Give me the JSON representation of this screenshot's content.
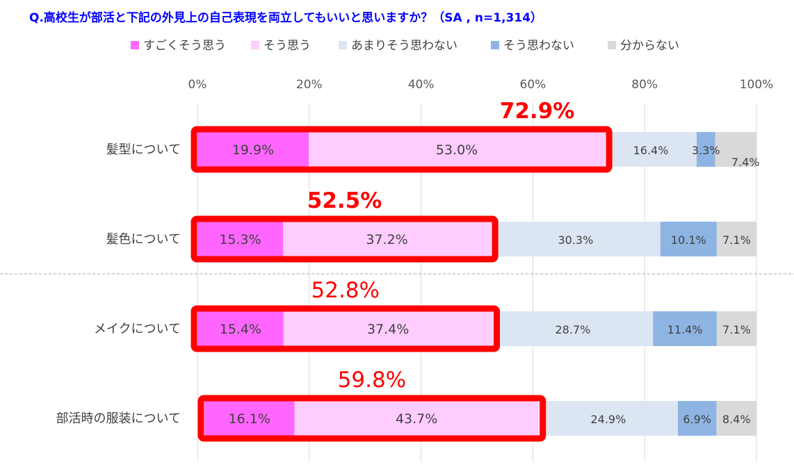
{
  "chart_data": {
    "type": "bar",
    "orientation": "horizontal",
    "stacked": true,
    "title": "Q.高校生が部活と下記の外見上の自己表現を両立してもいいと思いますか？（SA , n=1,314）",
    "xlim": [
      0,
      100
    ],
    "x_ticks": [
      "0%",
      "20%",
      "40%",
      "60%",
      "80%",
      "100%"
    ],
    "grid": "vertical",
    "legend_position": "top",
    "categories": [
      "髪型について",
      "髪色について",
      "メイクについて",
      "部活時の服装について"
    ],
    "series": [
      {
        "name": "すごくそう思う",
        "color": "#ff66ff",
        "values": [
          19.9,
          15.3,
          15.4,
          16.1
        ],
        "labels": [
          "19.9%",
          "15.3%",
          "15.4%",
          "16.1%"
        ]
      },
      {
        "name": "そう思う",
        "color": "#ffccff",
        "values": [
          53.0,
          37.2,
          37.4,
          43.7
        ],
        "labels": [
          "53.0%",
          "37.2%",
          "37.4%",
          "43.7%"
        ]
      },
      {
        "name": "あまりそう思わない",
        "color": "#dce6f2",
        "values": [
          16.4,
          30.3,
          28.7,
          24.9
        ],
        "labels": [
          "16.4%",
          "30.3%",
          "28.7%",
          "24.9%"
        ]
      },
      {
        "name": "そう思わない",
        "color": "#8eb4e3",
        "values": [
          3.3,
          10.1,
          11.4,
          6.9
        ],
        "labels": [
          "3.3%",
          "10.1%",
          "11.4%",
          "6.9%"
        ]
      },
      {
        "name": "分からない",
        "color": "#d9d9d9",
        "values": [
          7.4,
          7.1,
          7.1,
          8.4
        ],
        "labels": [
          "7.4%",
          "7.1%",
          "7.1%",
          "8.4%"
        ]
      }
    ],
    "annotations": {
      "totals": [
        "72.9%",
        "52.5%",
        "52.8%",
        "59.8%"
      ],
      "total_bold": [
        true,
        true,
        false,
        false
      ],
      "total_color": "#ff0000",
      "highlight_color": "#ff0000",
      "title_color": "#0000ff"
    }
  }
}
